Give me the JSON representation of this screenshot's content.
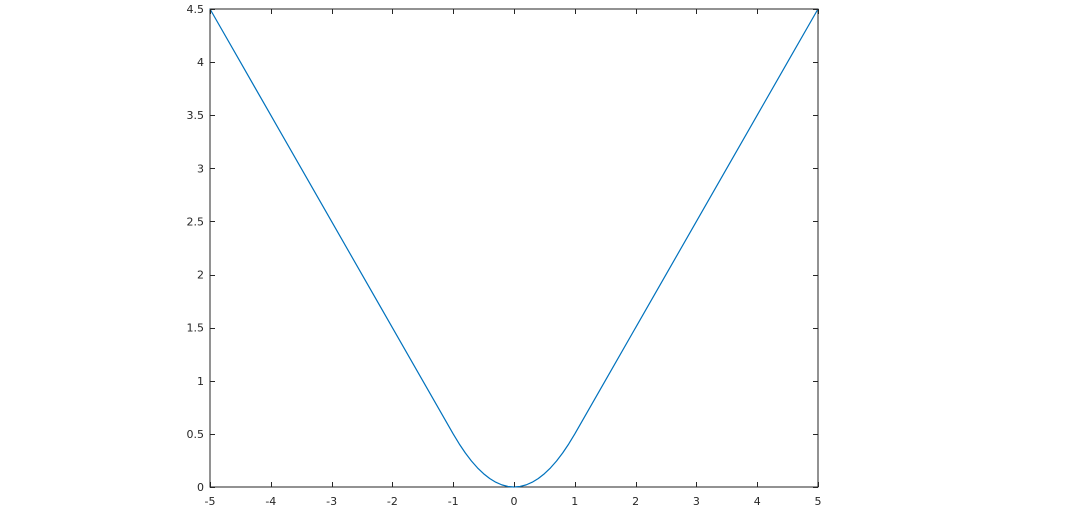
{
  "chart_data": {
    "type": "line",
    "title": "",
    "xlabel": "",
    "ylabel": "",
    "xlim": [
      -5,
      5
    ],
    "ylim": [
      0,
      4.5
    ],
    "grid": false,
    "x_ticks": [
      -5,
      -4,
      -3,
      -2,
      -1,
      0,
      1,
      2,
      3,
      4,
      5
    ],
    "x_tick_labels": [
      "-5",
      "-4",
      "-3",
      "-2",
      "-1",
      "0",
      "1",
      "2",
      "3",
      "4",
      "5"
    ],
    "y_ticks": [
      0,
      0.5,
      1,
      1.5,
      2,
      2.5,
      3,
      3.5,
      4,
      4.5
    ],
    "y_tick_labels": [
      "0",
      "0.5",
      "1",
      "1.5",
      "2",
      "2.5",
      "3",
      "3.5",
      "4",
      "4.5"
    ],
    "series": [
      {
        "color": "#0072bd",
        "x": [
          -5,
          -4.5,
          -4,
          -3.5,
          -3,
          -2.5,
          -2,
          -1.5,
          -1,
          -0.9,
          -0.8,
          -0.7,
          -0.6,
          -0.5,
          -0.4,
          -0.3,
          -0.2,
          -0.1,
          0,
          0.1,
          0.2,
          0.3,
          0.4,
          0.5,
          0.6,
          0.7,
          0.8,
          0.9,
          1,
          1.5,
          2,
          2.5,
          3,
          3.5,
          4,
          4.5,
          5
        ],
        "y": [
          4.5,
          4.0,
          3.5,
          3.0,
          2.5,
          2.0,
          1.5,
          1.0,
          0.5,
          0.405,
          0.32,
          0.245,
          0.18,
          0.125,
          0.08,
          0.045,
          0.02,
          0.005,
          0,
          0.005,
          0.02,
          0.045,
          0.08,
          0.125,
          0.18,
          0.245,
          0.32,
          0.405,
          0.5,
          1.0,
          1.5,
          2.0,
          2.5,
          3.0,
          3.5,
          4.0,
          4.5
        ]
      }
    ]
  }
}
